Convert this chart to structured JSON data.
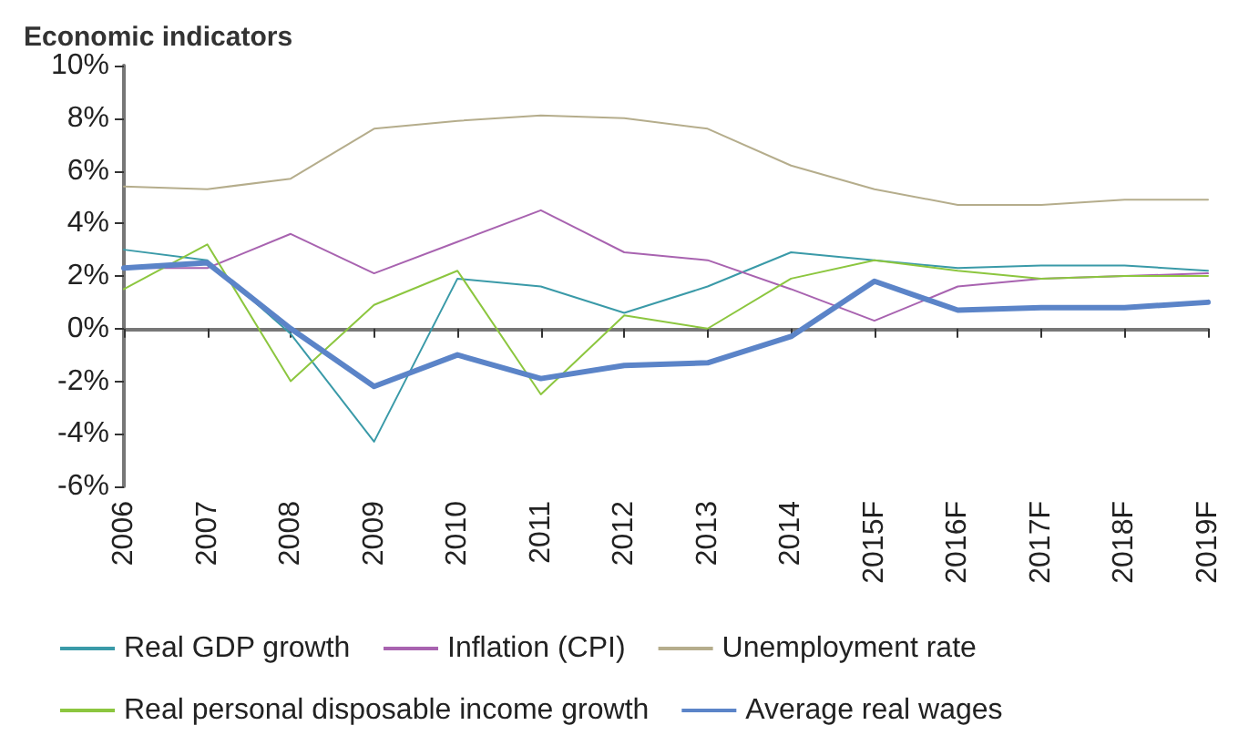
{
  "chart_data": {
    "type": "line",
    "title": "Economic indicators",
    "categories": [
      "2006",
      "2007",
      "2008",
      "2009",
      "2010",
      "2011",
      "2012",
      "2013",
      "2014",
      "2015F",
      "2016F",
      "2017F",
      "2018F",
      "2019F"
    ],
    "series": [
      {
        "name": "Real GDP growth",
        "color": "#3a9aa8",
        "values": [
          3.0,
          2.6,
          -0.2,
          -4.3,
          1.9,
          1.6,
          0.6,
          1.6,
          2.9,
          2.6,
          2.3,
          2.4,
          2.4,
          2.2
        ]
      },
      {
        "name": "Inflation (CPI)",
        "color": "#a863b0",
        "values": [
          2.3,
          2.3,
          3.6,
          2.1,
          3.3,
          4.5,
          2.9,
          2.6,
          1.5,
          0.3,
          1.6,
          1.9,
          2.0,
          2.1
        ]
      },
      {
        "name": "Unemployment rate",
        "color": "#b5ad8c",
        "values": [
          5.4,
          5.3,
          5.7,
          7.6,
          7.9,
          8.1,
          8.0,
          7.6,
          6.2,
          5.3,
          4.7,
          4.7,
          4.9,
          4.9
        ]
      },
      {
        "name": "Real personal disposable income growth",
        "color": "#8cc63f",
        "values": [
          1.5,
          3.2,
          -2.0,
          0.9,
          2.2,
          -2.5,
          0.5,
          0.0,
          1.9,
          2.6,
          2.2,
          1.9,
          2.0,
          2.0
        ]
      },
      {
        "name": "Average real wages",
        "color": "#5b84c8",
        "values": [
          2.3,
          2.5,
          0.0,
          -2.2,
          -1.0,
          -1.9,
          -1.4,
          -1.3,
          -0.3,
          1.8,
          0.7,
          0.8,
          0.8,
          1.0
        ]
      }
    ],
    "ylim": [
      -6,
      10
    ],
    "yticks": [
      {
        "value": -6,
        "label": "-6%"
      },
      {
        "value": -4,
        "label": "-4%"
      },
      {
        "value": -2,
        "label": "-2%"
      },
      {
        "value": 0,
        "label": "0%"
      },
      {
        "value": 2,
        "label": "2%"
      },
      {
        "value": 4,
        "label": "4%"
      },
      {
        "value": 6,
        "label": "6%"
      },
      {
        "value": 8,
        "label": "8%"
      },
      {
        "value": 10,
        "label": "10%"
      }
    ],
    "legend": "bottom",
    "marker": "none",
    "line_style": "solid"
  }
}
